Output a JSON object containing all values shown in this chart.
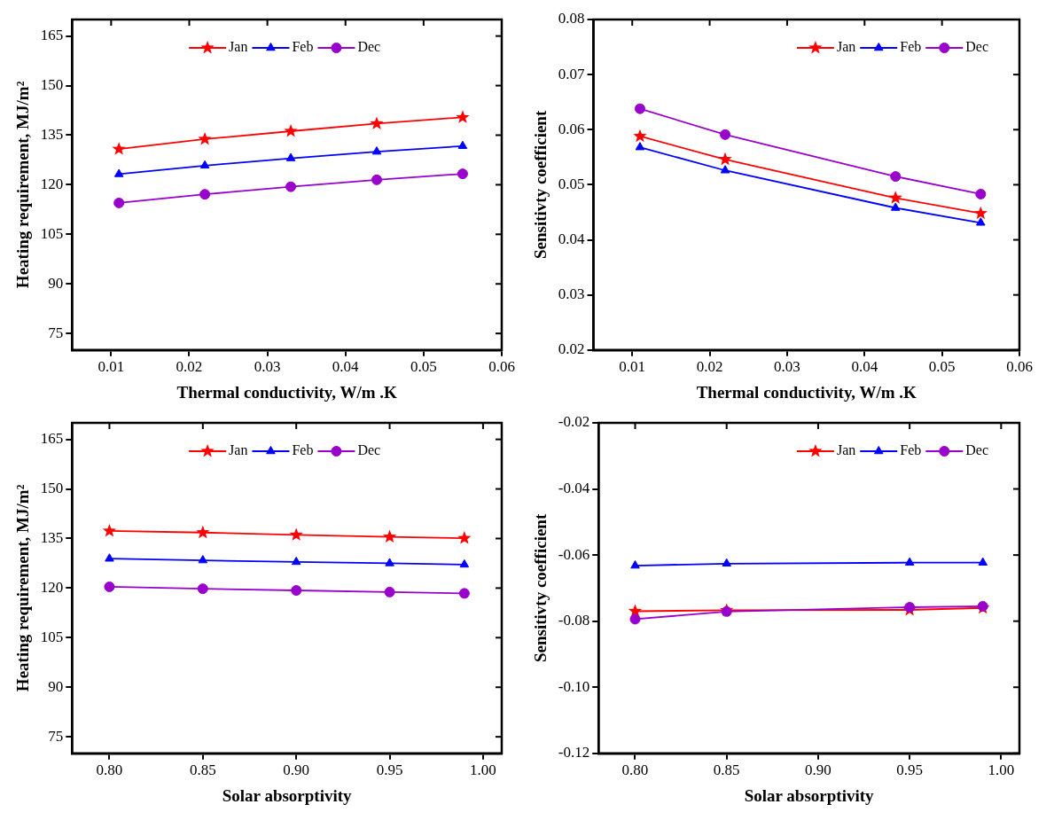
{
  "chart_data": [
    {
      "type": "line",
      "xlabel": "Thermal conductivity, W/m .K",
      "ylabel": "Heating requirement, MJ/m²",
      "xlim": [
        0.005,
        0.06
      ],
      "xticks": [
        0.01,
        0.02,
        0.03,
        0.04,
        0.05,
        0.06
      ],
      "ylim": [
        70,
        170
      ],
      "yticks": [
        75,
        90,
        105,
        120,
        135,
        150,
        165
      ],
      "grid": false,
      "legend": "top",
      "x": [
        0.011,
        0.022,
        0.033,
        0.044,
        0.055
      ],
      "series": [
        {
          "name": "Jan",
          "color": "#ff0000",
          "marker": "star",
          "values": [
            130.8,
            133.8,
            136.2,
            138.5,
            140.4
          ]
        },
        {
          "name": "Feb",
          "color": "#0000ff",
          "marker": "triangle",
          "values": [
            123.2,
            125.8,
            128.0,
            130.0,
            131.7
          ]
        },
        {
          "name": "Dec",
          "color": "#9900cc",
          "marker": "circle",
          "values": [
            114.5,
            117.1,
            119.4,
            121.5,
            123.3
          ]
        }
      ]
    },
    {
      "type": "line",
      "xlabel": "Thermal conductivity, W/m .K",
      "ylabel": "Sensitivty coefficient",
      "xlim": [
        0.005,
        0.06
      ],
      "xticks": [
        0.01,
        0.02,
        0.03,
        0.04,
        0.05,
        0.06
      ],
      "ylim": [
        0.02,
        0.08
      ],
      "yticks": [
        0.02,
        0.03,
        0.04,
        0.05,
        0.06,
        0.07,
        0.08
      ],
      "grid": false,
      "legend": "top right",
      "x": [
        0.011,
        0.022,
        0.044,
        0.055
      ],
      "series": [
        {
          "name": "Jan",
          "color": "#ff0000",
          "marker": "star",
          "values": [
            0.0588,
            0.0546,
            0.0476,
            0.0448
          ]
        },
        {
          "name": "Feb",
          "color": "#0000ff",
          "marker": "triangle",
          "values": [
            0.0568,
            0.0526,
            0.0458,
            0.0431
          ]
        },
        {
          "name": "Dec",
          "color": "#9900cc",
          "marker": "circle",
          "values": [
            0.0638,
            0.0591,
            0.0515,
            0.0483
          ]
        }
      ]
    },
    {
      "type": "line",
      "xlabel": "Solar absorptivity",
      "ylabel": "Heating requirement, MJ/m²",
      "xlim": [
        0.78,
        1.01
      ],
      "xticks": [
        {
          "value": 0.8,
          "label": "0.80"
        },
        0.85,
        {
          "value": 0.9,
          "label": "0.90"
        },
        0.95,
        {
          "value": 1.0,
          "label": "1.00"
        }
      ],
      "ylim": [
        70,
        170
      ],
      "yticks": [
        75,
        90,
        105,
        120,
        135,
        150,
        165
      ],
      "grid": false,
      "legend": "top",
      "x": [
        0.8,
        0.85,
        0.9,
        0.95,
        0.99
      ],
      "series": [
        {
          "name": "Jan",
          "color": "#ff0000",
          "marker": "star",
          "values": [
            137.3,
            136.8,
            136.1,
            135.5,
            135.1
          ]
        },
        {
          "name": "Feb",
          "color": "#0000ff",
          "marker": "triangle",
          "values": [
            128.9,
            128.4,
            127.9,
            127.5,
            127.1
          ]
        },
        {
          "name": "Dec",
          "color": "#9900cc",
          "marker": "circle",
          "values": [
            120.4,
            119.8,
            119.3,
            118.8,
            118.4
          ]
        }
      ]
    },
    {
      "type": "line",
      "xlabel": "Solar absorptivity",
      "ylabel": "Sensitivty coefficient",
      "xlim": [
        0.78,
        1.01
      ],
      "xticks": [
        {
          "value": 0.8,
          "label": "0.80"
        },
        0.85,
        {
          "value": 0.9,
          "label": "0.90"
        },
        0.95,
        {
          "value": 1.0,
          "label": "1.00"
        }
      ],
      "ylim": [
        -0.12,
        -0.02
      ],
      "yticks": [
        {
          "value": -0.12,
          "label": "-0.12"
        },
        {
          "value": -0.1,
          "label": "-0.10"
        },
        {
          "value": -0.08,
          "label": "-0.08"
        },
        {
          "value": -0.06,
          "label": "-0.06"
        },
        {
          "value": -0.04,
          "label": "-0.04"
        },
        {
          "value": -0.02,
          "label": "-0.02"
        }
      ],
      "grid": false,
      "legend": "top right",
      "x": [
        0.8,
        0.85,
        0.95,
        0.99
      ],
      "series": [
        {
          "name": "Jan",
          "color": "#ff0000",
          "marker": "star",
          "values": [
            -0.077,
            -0.0767,
            -0.0766,
            -0.076
          ]
        },
        {
          "name": "Feb",
          "color": "#0000ff",
          "marker": "triangle",
          "values": [
            -0.0632,
            -0.0626,
            -0.0623,
            -0.0623
          ]
        },
        {
          "name": "Dec",
          "color": "#9900cc",
          "marker": "circle",
          "values": [
            -0.0794,
            -0.0771,
            -0.0758,
            -0.0755
          ]
        }
      ]
    }
  ]
}
